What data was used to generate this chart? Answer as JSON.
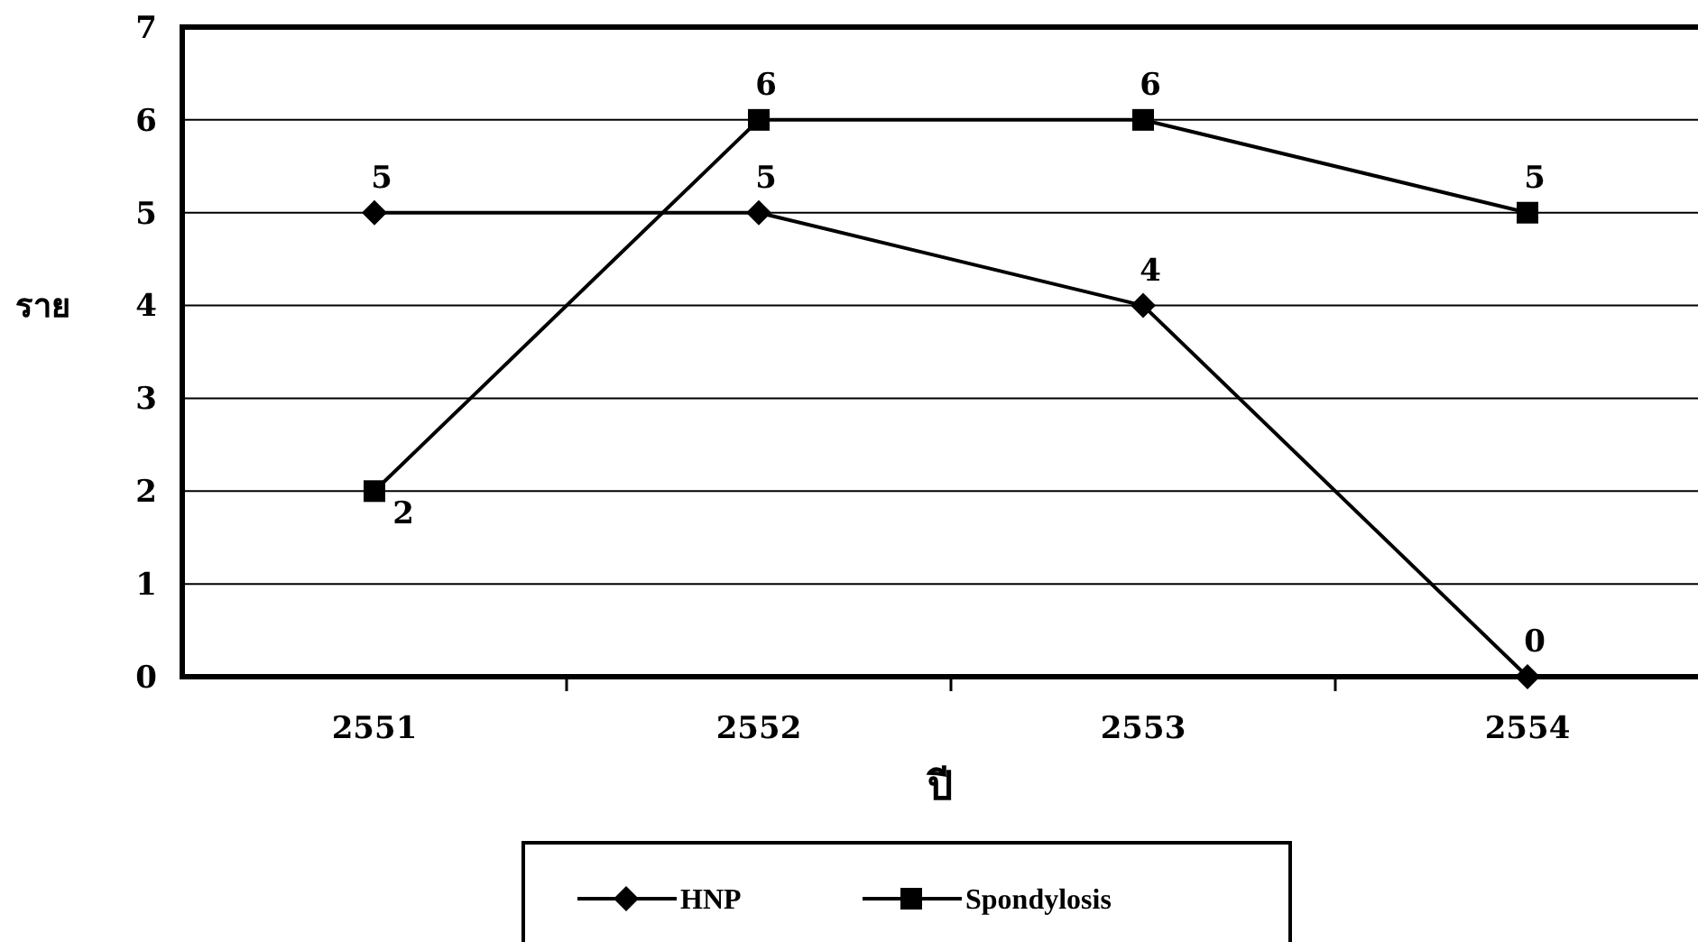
{
  "chart_data": {
    "type": "line",
    "categories": [
      "2551",
      "2552",
      "2553",
      "2554"
    ],
    "xlabel": "ปี",
    "ylabel": "ราย",
    "series": [
      {
        "name": "HNP",
        "color": "#000000",
        "marker": "diamond",
        "values": [
          5,
          5,
          4,
          0
        ]
      },
      {
        "name": "Spondylosis",
        "color": "#000000",
        "marker": "square",
        "values": [
          2,
          6,
          6,
          5
        ]
      }
    ],
    "ylim": [
      0,
      7
    ],
    "yticks": [
      0,
      1,
      2,
      3,
      4,
      5,
      6,
      7
    ],
    "grid": "y",
    "legend": "bottom",
    "data_labels": true,
    "line_style": "solid"
  }
}
